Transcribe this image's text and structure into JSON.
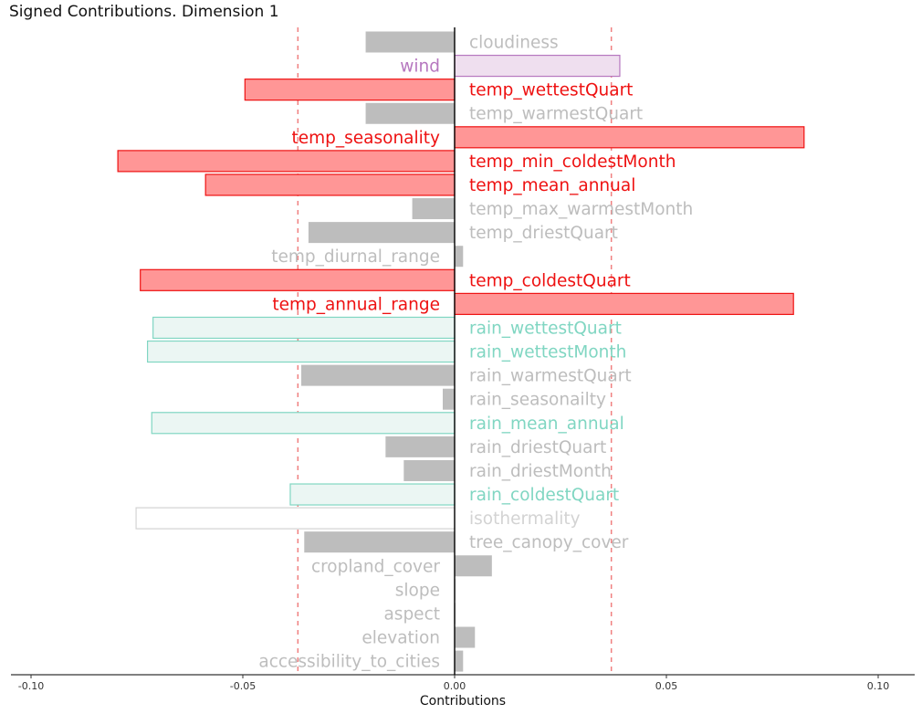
{
  "chart_data": {
    "type": "bar",
    "orientation": "horizontal",
    "title": "Signed Contributions. Dimension 1",
    "xlabel": "Contributions",
    "ylabel": "",
    "xlim": [
      -0.1,
      0.1
    ],
    "x_ticks": [
      -0.1,
      -0.05,
      0.0,
      0.05,
      0.1
    ],
    "x_tick_labels": [
      "-0.10",
      "-0.05",
      "0.00",
      "0.05",
      "0.10"
    ],
    "threshold_lines": [
      -0.037,
      0.037
    ],
    "threshold_color": "#f08080",
    "grid": false,
    "legend": "none",
    "categories": [
      "cloudiness",
      "wind",
      "temp_wettestQuart",
      "temp_warmestQuart",
      "temp_seasonality",
      "temp_min_coldestMonth",
      "temp_mean_annual",
      "temp_max_warmestMonth",
      "temp_driestQuart",
      "temp_diurnal_range",
      "temp_coldestQuart",
      "temp_annual_range",
      "rain_wettestQuart",
      "rain_wettestMonth",
      "rain_warmestQuart",
      "rain_seasonailty",
      "rain_mean_annual",
      "rain_driestQuart",
      "rain_driestMonth",
      "rain_coldestQuart",
      "isothermality",
      "tree_canopy_cover",
      "cropland_cover",
      "slope",
      "aspect",
      "elevation",
      "accessibility_to_cities"
    ],
    "values": [
      -0.021,
      0.039,
      -0.0495,
      -0.021,
      0.0825,
      -0.0795,
      -0.0588,
      -0.01,
      -0.0345,
      0.002,
      -0.0742,
      0.08,
      -0.0712,
      -0.0725,
      -0.0362,
      -0.0028,
      -0.0715,
      -0.0163,
      -0.012,
      -0.0388,
      -0.0752,
      -0.0355,
      0.0088,
      0.0002,
      0.0002,
      0.0048,
      0.002
    ],
    "groups": [
      "neutral",
      "wind",
      "temp",
      "neutral",
      "temp",
      "temp",
      "temp",
      "neutral",
      "neutral",
      "neutral",
      "temp",
      "temp",
      "rain",
      "rain",
      "neutral",
      "neutral",
      "rain",
      "neutral",
      "neutral",
      "rain",
      "iso",
      "neutral",
      "neutral",
      "neutral",
      "neutral",
      "neutral",
      "neutral"
    ],
    "group_styles": {
      "neutral": {
        "fill": "#bdbdbd",
        "stroke": "none",
        "label": "#bdbdbd"
      },
      "temp": {
        "fill": "#ff9696",
        "stroke": "#ee1111",
        "label": "#ee1111"
      },
      "wind": {
        "fill": "#efdfef",
        "stroke": "#b677bf",
        "label": "#b677bf"
      },
      "rain": {
        "fill": "#ebf6f3",
        "stroke": "#80d6c2",
        "label": "#80d6c2"
      },
      "iso": {
        "fill": "#ffffff",
        "stroke": "#d3d3d3",
        "label": "#d3d3d3"
      }
    }
  }
}
